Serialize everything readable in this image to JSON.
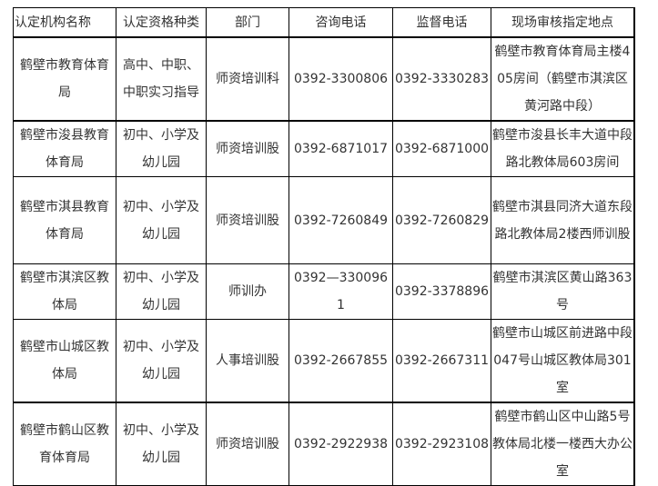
{
  "table": {
    "headers": [
      "认定机构名称",
      "认定资格种类",
      "部门",
      "咨询电话",
      "监督电话",
      "现场审核指定地点"
    ],
    "rows": [
      [
        "鹤壁市教育体育局",
        "高中、中职、中职实习指导",
        "师资培训科",
        "0392-3300806",
        "0392-3330283",
        "鹤壁市教育体育局主楼405房间（鹤壁市淇滨区黄河路中段）"
      ],
      [
        "鹤壁市浚县教育体育局",
        "初中、小学及幼儿园",
        "师资培训股",
        "0392-6871017",
        "0392-6871000",
        "鹤壁市浚县长丰大道中段路北教体局603房间"
      ],
      [
        "鹤壁市淇县教育体育局",
        "初中、小学及幼儿园",
        "师资培训股",
        "0392-7260849",
        "0392-7260829",
        "鹤壁市淇县同济大道东段路北教体局2楼西师训股"
      ],
      [
        "鹤壁市淇滨区教体局",
        "初中、小学及幼儿园",
        "师训办",
        "0392—3300961",
        "0392-3378896",
        "鹤壁市淇滨区黄山路363号"
      ],
      [
        "鹤壁市山城区教体局",
        "初中、小学及幼儿园",
        "人事培训股",
        "0392-2667855",
        "0392-2667311",
        "鹤壁市山城区前进路中段047号山城区教体局301室"
      ],
      [
        "鹤壁市鹤山区教育体育局",
        "初中、小学及幼儿园",
        "师资培训股",
        "0392-2922938",
        "0392-2923108",
        "鹤壁市鹤山区中山路5号教体局北楼一楼西大办公室"
      ]
    ]
  }
}
